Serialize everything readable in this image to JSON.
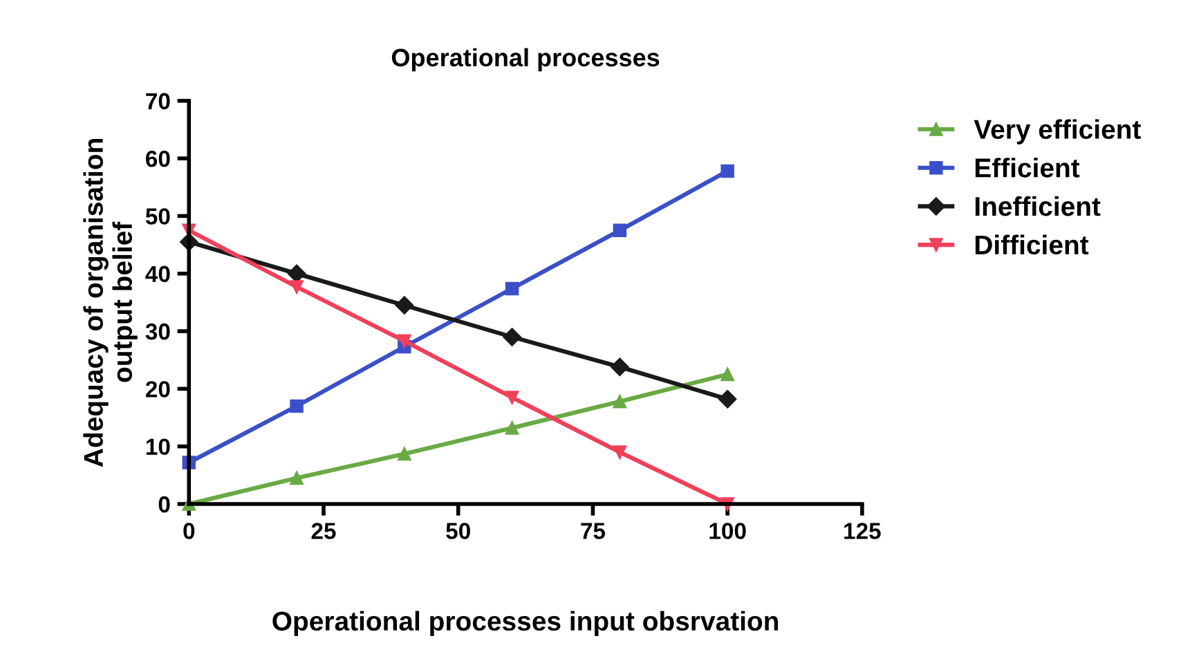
{
  "chart_data": {
    "type": "line",
    "title": "Operational processes",
    "xlabel": "Operational processes input obsrvation",
    "ylabel": "Adequacy of organisation\noutput belief",
    "x": [
      0,
      20,
      40,
      60,
      80,
      100
    ],
    "series": [
      {
        "name": "Very efficient",
        "color": "#6aaa45",
        "marker": "triangle",
        "values": [
          0,
          4.5,
          8.7,
          13.2,
          17.8,
          22.5
        ]
      },
      {
        "name": "Efficient",
        "color": "#3b50c8",
        "marker": "square",
        "values": [
          7.2,
          17,
          27.3,
          37.4,
          47.5,
          57.8
        ]
      },
      {
        "name": "Inefficient",
        "color": "#1a1a1a",
        "marker": "diamond",
        "values": [
          45.5,
          40,
          34.5,
          29,
          23.8,
          18.2
        ]
      },
      {
        "name": "Difficient",
        "color": "#f0405a",
        "marker": "triangle_down",
        "values": [
          47.5,
          37.7,
          28.3,
          18.5,
          9,
          0
        ]
      }
    ],
    "xlim": [
      0,
      125
    ],
    "xticks": [
      0,
      25,
      50,
      75,
      100,
      125
    ],
    "ylim": [
      0,
      70
    ],
    "yticks": [
      0,
      10,
      20,
      30,
      40,
      50,
      60,
      70
    ],
    "grid": false,
    "legend": "right",
    "line_style": "solid"
  }
}
